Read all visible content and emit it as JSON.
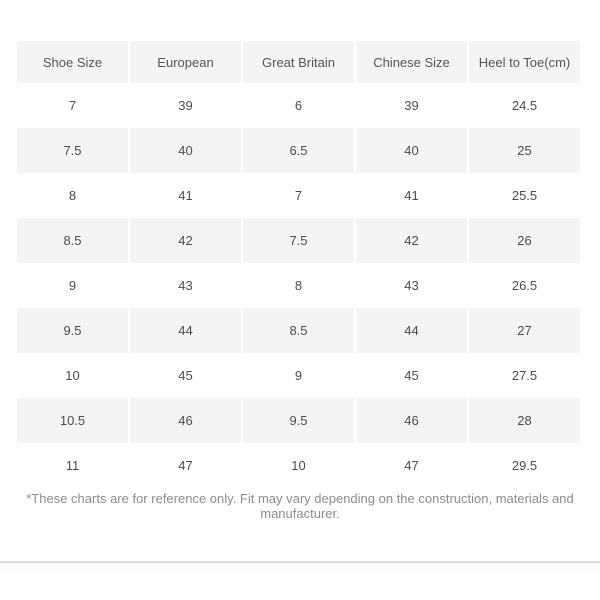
{
  "table": {
    "headers": [
      "Shoe Size",
      "European",
      "Great Britain",
      "Chinese Size",
      "Heel to Toe(cm)"
    ],
    "rows": [
      [
        "7",
        "39",
        "6",
        "39",
        "24.5"
      ],
      [
        "7.5",
        "40",
        "6.5",
        "40",
        "25"
      ],
      [
        "8",
        "41",
        "7",
        "41",
        "25.5"
      ],
      [
        "8.5",
        "42",
        "7.5",
        "42",
        "26"
      ],
      [
        "9",
        "43",
        "8",
        "43",
        "26.5"
      ],
      [
        "9.5",
        "44",
        "8.5",
        "44",
        "27"
      ],
      [
        "10",
        "45",
        "9",
        "45",
        "27.5"
      ],
      [
        "10.5",
        "46",
        "9.5",
        "46",
        "28"
      ],
      [
        "11",
        "47",
        "10",
        "47",
        "29.5"
      ]
    ]
  },
  "footnote": "*These charts are for reference only. Fit may vary depending on the construction, materials and manufacturer.",
  "colors": {
    "header-bg": "#f4f4f4",
    "stripe-bg": "#f4f4f4",
    "text": "#4c4c4c",
    "footnote": "#8c8c8c",
    "divider": "#dcdcdc",
    "page-bg": "#ffffff"
  }
}
